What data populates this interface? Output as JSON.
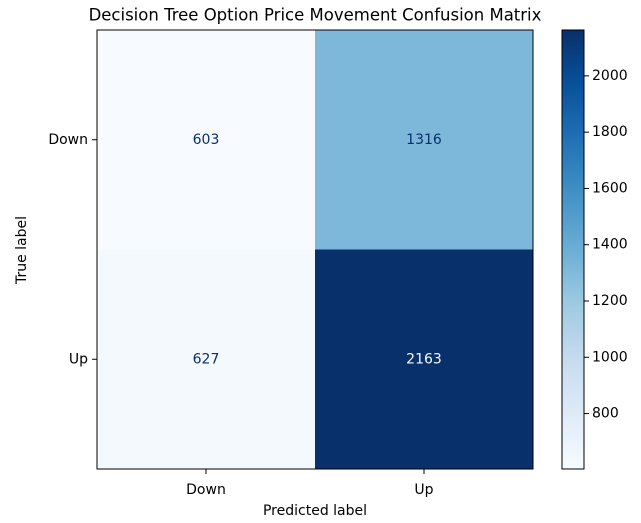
{
  "chart_data": {
    "type": "heatmap",
    "title": "Decision Tree Option Price Movement Confusion Matrix",
    "xlabel": "Predicted label",
    "ylabel": "True label",
    "x_categories": [
      "Down",
      "Up"
    ],
    "y_categories": [
      "Down",
      "Up"
    ],
    "values": [
      [
        603,
        1316
      ],
      [
        627,
        2163
      ]
    ],
    "colormap": [
      "#f7fbff",
      "#deebf7",
      "#c6dbef",
      "#9ecae1",
      "#6baed6",
      "#4292c6",
      "#2171b5",
      "#08519c",
      "#08306b"
    ],
    "zlim": [
      603,
      2163
    ],
    "zticks": [
      800,
      1000,
      1200,
      1400,
      1600,
      1800,
      2000
    ]
  }
}
